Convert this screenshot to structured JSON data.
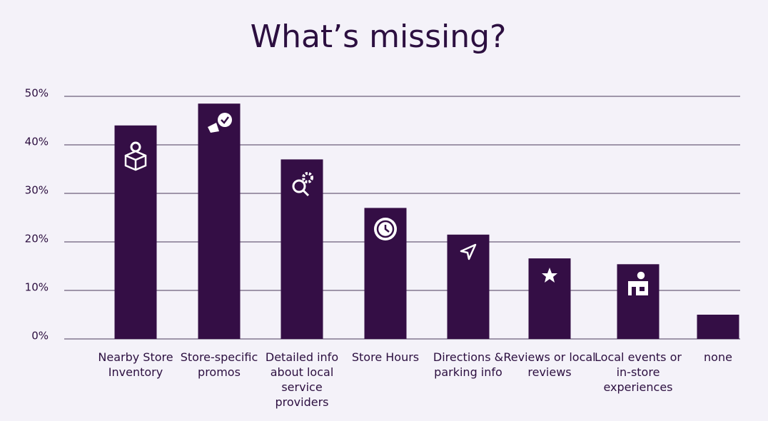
{
  "chart_data": {
    "type": "bar",
    "title": "What’s missing?",
    "categories": [
      "Nearby Store Inventory",
      "Store-specific promos",
      "Detailed info about local service providers",
      "Store Hours",
      "Directions & parking info",
      "Reviews or local reviews",
      "Local events or in-store experiences",
      "none"
    ],
    "values": [
      44,
      48.5,
      37,
      27,
      21.5,
      16.6,
      15.4,
      5
    ],
    "color": "#340e45",
    "ylim": [
      0,
      50
    ],
    "yticks": [
      {
        "value": 0,
        "label": "0%"
      },
      {
        "value": 10,
        "label": "10%"
      },
      {
        "value": 20,
        "label": "20%"
      },
      {
        "value": 30,
        "label": "30%"
      },
      {
        "value": 40,
        "label": "40%"
      },
      {
        "value": 50,
        "label": "50%"
      }
    ],
    "grid": true
  }
}
